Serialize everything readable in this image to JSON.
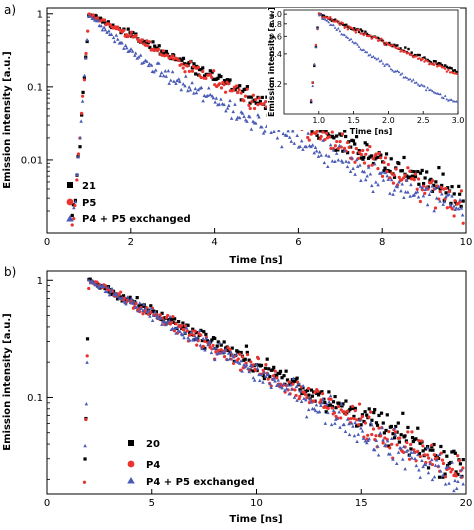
{
  "chart_data": [
    {
      "panel_label": "a)",
      "type": "scatter",
      "xlabel": "Time [ns]",
      "ylabel": "Emission intensity [a.u.]",
      "xlim": [
        0,
        10
      ],
      "ylim": [
        0.001,
        1.2
      ],
      "yscale": "log",
      "x_ticks": [
        "0",
        "2",
        "4",
        "6",
        "8",
        "10"
      ],
      "y_ticks": [
        "1",
        "0.1",
        "0.01"
      ],
      "legend_position": "lower-left",
      "series": [
        {
          "name": "21",
          "marker": "square",
          "color": "#000000",
          "rise_start": 0.6,
          "peak_time": 1.0,
          "decay_rate": 0.67,
          "noise_floor": 0.0012
        },
        {
          "name": "P5",
          "marker": "circle",
          "color": "#e8332f",
          "rise_start": 0.6,
          "peak_time": 1.0,
          "decay_rate": 0.7,
          "noise_floor": 0.0013
        },
        {
          "name": "P4 + P5 exchanged",
          "marker": "triangle",
          "color": "#4a5bb5",
          "rise_start": 0.6,
          "peak_time": 1.0,
          "decay_rate": 1.95,
          "decay_rate_2": 0.62,
          "fast_fraction": 0.6,
          "noise_floor": 0.0011
        }
      ],
      "inset": {
        "xlabel": "Time [ns]",
        "ylabel": "Emission intensity [a.u.]",
        "xlim": [
          0.5,
          3.0
        ],
        "ylim": [
          0.1,
          1.1
        ],
        "yscale": "log",
        "x_ticks": [
          "1.0",
          "1.5",
          "2.0",
          "2.5",
          "3.0"
        ],
        "y_ticks": [
          "1.0",
          "0.8",
          "0.6",
          "0.4",
          "0.2"
        ]
      }
    },
    {
      "panel_label": "b)",
      "type": "scatter",
      "xlabel": "Time [ns]",
      "ylabel": "Emission intensity [a.u.]",
      "xlim": [
        0,
        20
      ],
      "ylim": [
        0.015,
        1.2
      ],
      "yscale": "log",
      "x_ticks": [
        "0",
        "5",
        "10",
        "15",
        "20"
      ],
      "y_ticks": [
        "1",
        "0.1"
      ],
      "legend_position": "lower-left",
      "series": [
        {
          "name": "20",
          "marker": "square",
          "color": "#000000",
          "rise_start": 1.6,
          "peak_time": 2.0,
          "decay_rate": 0.205,
          "noise_floor": 0.0
        },
        {
          "name": "P4",
          "marker": "circle",
          "color": "#e8332f",
          "rise_start": 1.6,
          "peak_time": 2.0,
          "decay_rate": 0.215,
          "noise_floor": 0.0
        },
        {
          "name": "P4 + P5 exchanged",
          "marker": "triangle",
          "color": "#4a5bb5",
          "rise_start": 1.6,
          "peak_time": 2.0,
          "decay_rate": 0.225,
          "noise_floor": 0.0
        }
      ]
    }
  ]
}
